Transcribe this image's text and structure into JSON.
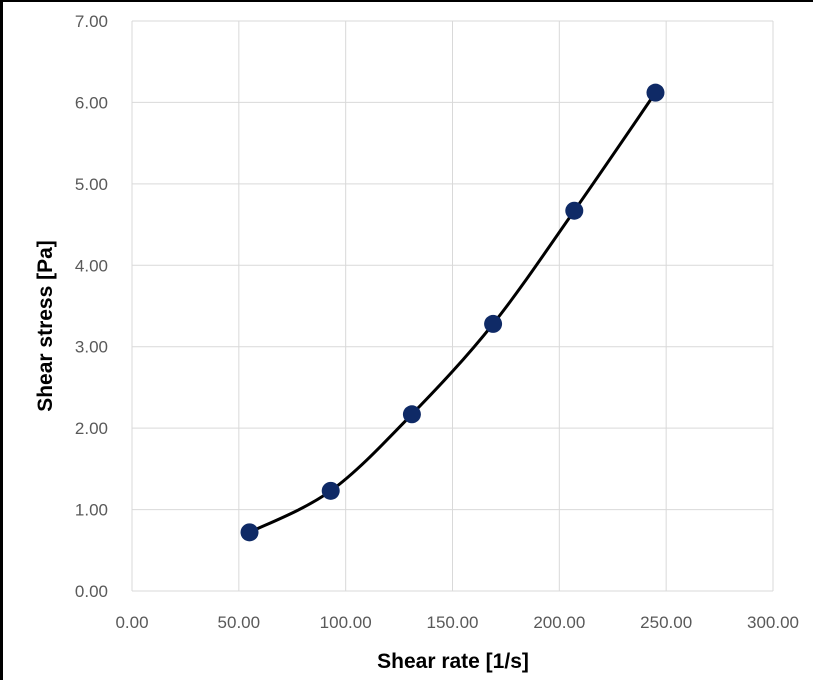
{
  "chart_data": {
    "type": "scatter",
    "title": "",
    "xlabel": "Shear rate [1/s]",
    "ylabel": "Shear stress [Pa]",
    "xlim": [
      0,
      300
    ],
    "ylim": [
      0,
      7
    ],
    "x_ticks": [
      0,
      50,
      100,
      150,
      200,
      250,
      300
    ],
    "y_ticks": [
      0,
      1,
      2,
      3,
      4,
      5,
      6,
      7
    ],
    "x_tick_labels": [
      "0.00",
      "50.00",
      "100.00",
      "150.00",
      "200.00",
      "250.00",
      "300.00"
    ],
    "y_tick_labels": [
      "0.00",
      "1.00",
      "2.00",
      "3.00",
      "4.00",
      "5.00",
      "6.00",
      "7.00"
    ],
    "grid": true,
    "smooth_line": true,
    "series": [
      {
        "x": [
          55.0,
          93.0,
          131.0,
          169.0,
          207.0,
          245.0
        ],
        "y": [
          0.72,
          1.23,
          2.17,
          3.28,
          4.67,
          6.12
        ]
      }
    ],
    "colors": {
      "marker": "#0f2a66",
      "line": "#000000",
      "grid": "#d9d9d9"
    }
  }
}
